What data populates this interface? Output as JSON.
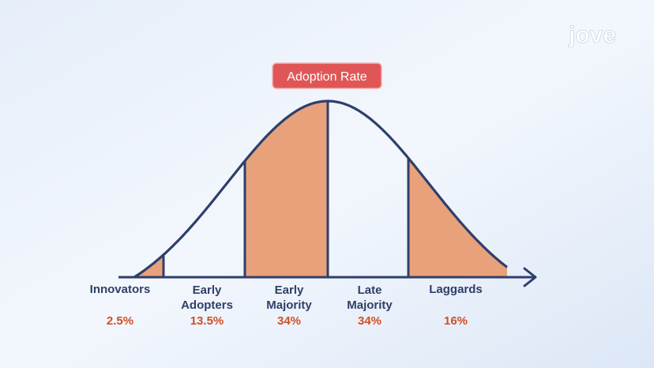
{
  "badge": "Adoption Rate",
  "logo": "jove",
  "segments": [
    {
      "label": "Innovators",
      "share": "2.5%"
    },
    {
      "label": "Early Adopters",
      "share": "13.5%"
    },
    {
      "label": "Early Majority",
      "share": "34%"
    },
    {
      "label": "Late Majority",
      "share": "34%"
    },
    {
      "label": "Laggards",
      "share": "16%"
    }
  ]
}
